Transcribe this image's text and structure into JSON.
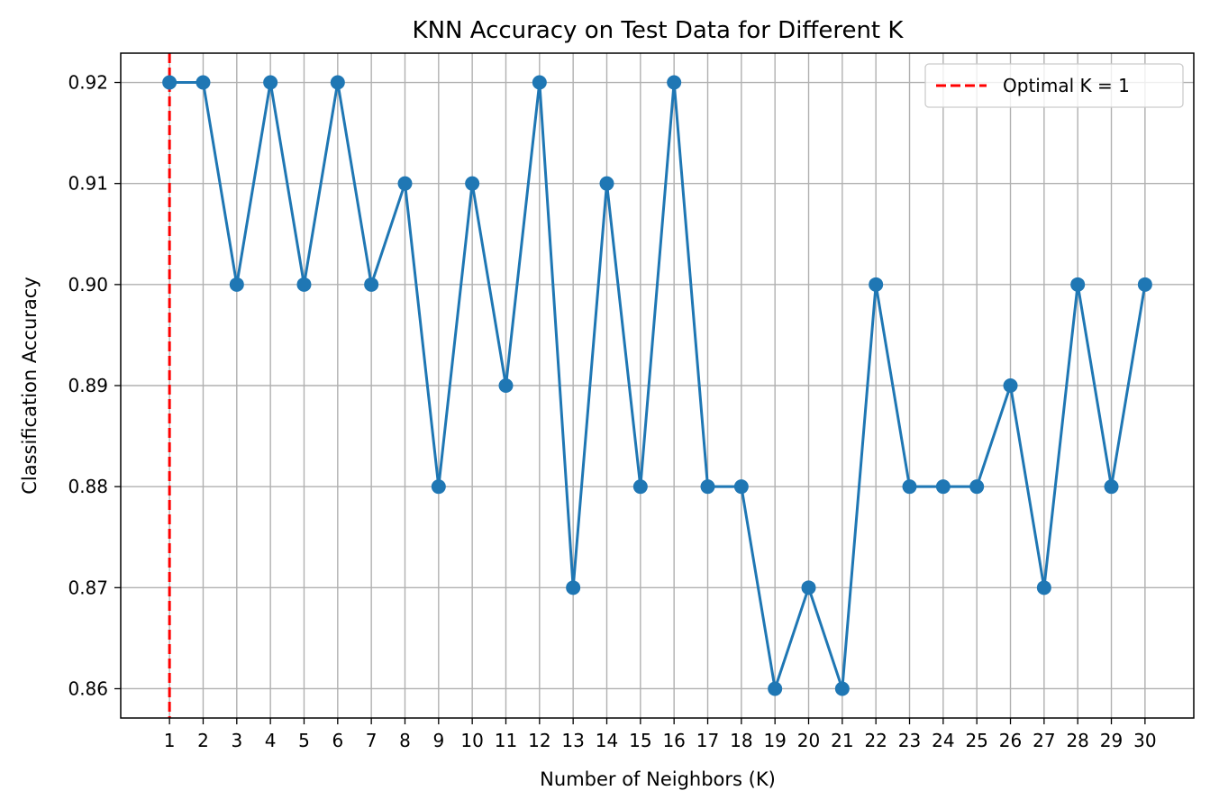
{
  "chart_data": {
    "type": "line",
    "title": "KNN Accuracy on Test Data for Different K",
    "xlabel": "Number of Neighbors (K)",
    "ylabel": "Classification Accuracy",
    "x": [
      1,
      2,
      3,
      4,
      5,
      6,
      7,
      8,
      9,
      10,
      11,
      12,
      13,
      14,
      15,
      16,
      17,
      18,
      19,
      20,
      21,
      22,
      23,
      24,
      25,
      26,
      27,
      28,
      29,
      30
    ],
    "xticks": [
      "1",
      "2",
      "3",
      "4",
      "5",
      "6",
      "7",
      "8",
      "9",
      "10",
      "11",
      "12",
      "13",
      "14",
      "15",
      "16",
      "17",
      "18",
      "19",
      "20",
      "21",
      "22",
      "23",
      "24",
      "25",
      "26",
      "27",
      "28",
      "29",
      "30"
    ],
    "series": [
      {
        "values": [
          0.92,
          0.92,
          0.9,
          0.92,
          0.9,
          0.92,
          0.9,
          0.91,
          0.88,
          0.91,
          0.89,
          0.92,
          0.87,
          0.91,
          0.88,
          0.92,
          0.88,
          0.88,
          0.86,
          0.87,
          0.86,
          0.9,
          0.88,
          0.88,
          0.88,
          0.89,
          0.87,
          0.9,
          0.88,
          0.9
        ],
        "color": "#1f77b4",
        "marker": "circle"
      }
    ],
    "yticks": [
      "0.86",
      "0.87",
      "0.88",
      "0.89",
      "0.90",
      "0.91",
      "0.92"
    ],
    "ytick_values": [
      0.86,
      0.87,
      0.88,
      0.89,
      0.9,
      0.91,
      0.92
    ],
    "xlim": [
      -0.45,
      31.45
    ],
    "ylim": [
      0.8571,
      0.9229
    ],
    "grid": true,
    "annotations": [
      {
        "type": "vline",
        "x": 1,
        "color": "#ff0000",
        "style": "dashed",
        "label": "Optimal K = 1"
      }
    ],
    "legend": {
      "position": "top-right",
      "entries": [
        "Optimal K = 1"
      ]
    }
  }
}
